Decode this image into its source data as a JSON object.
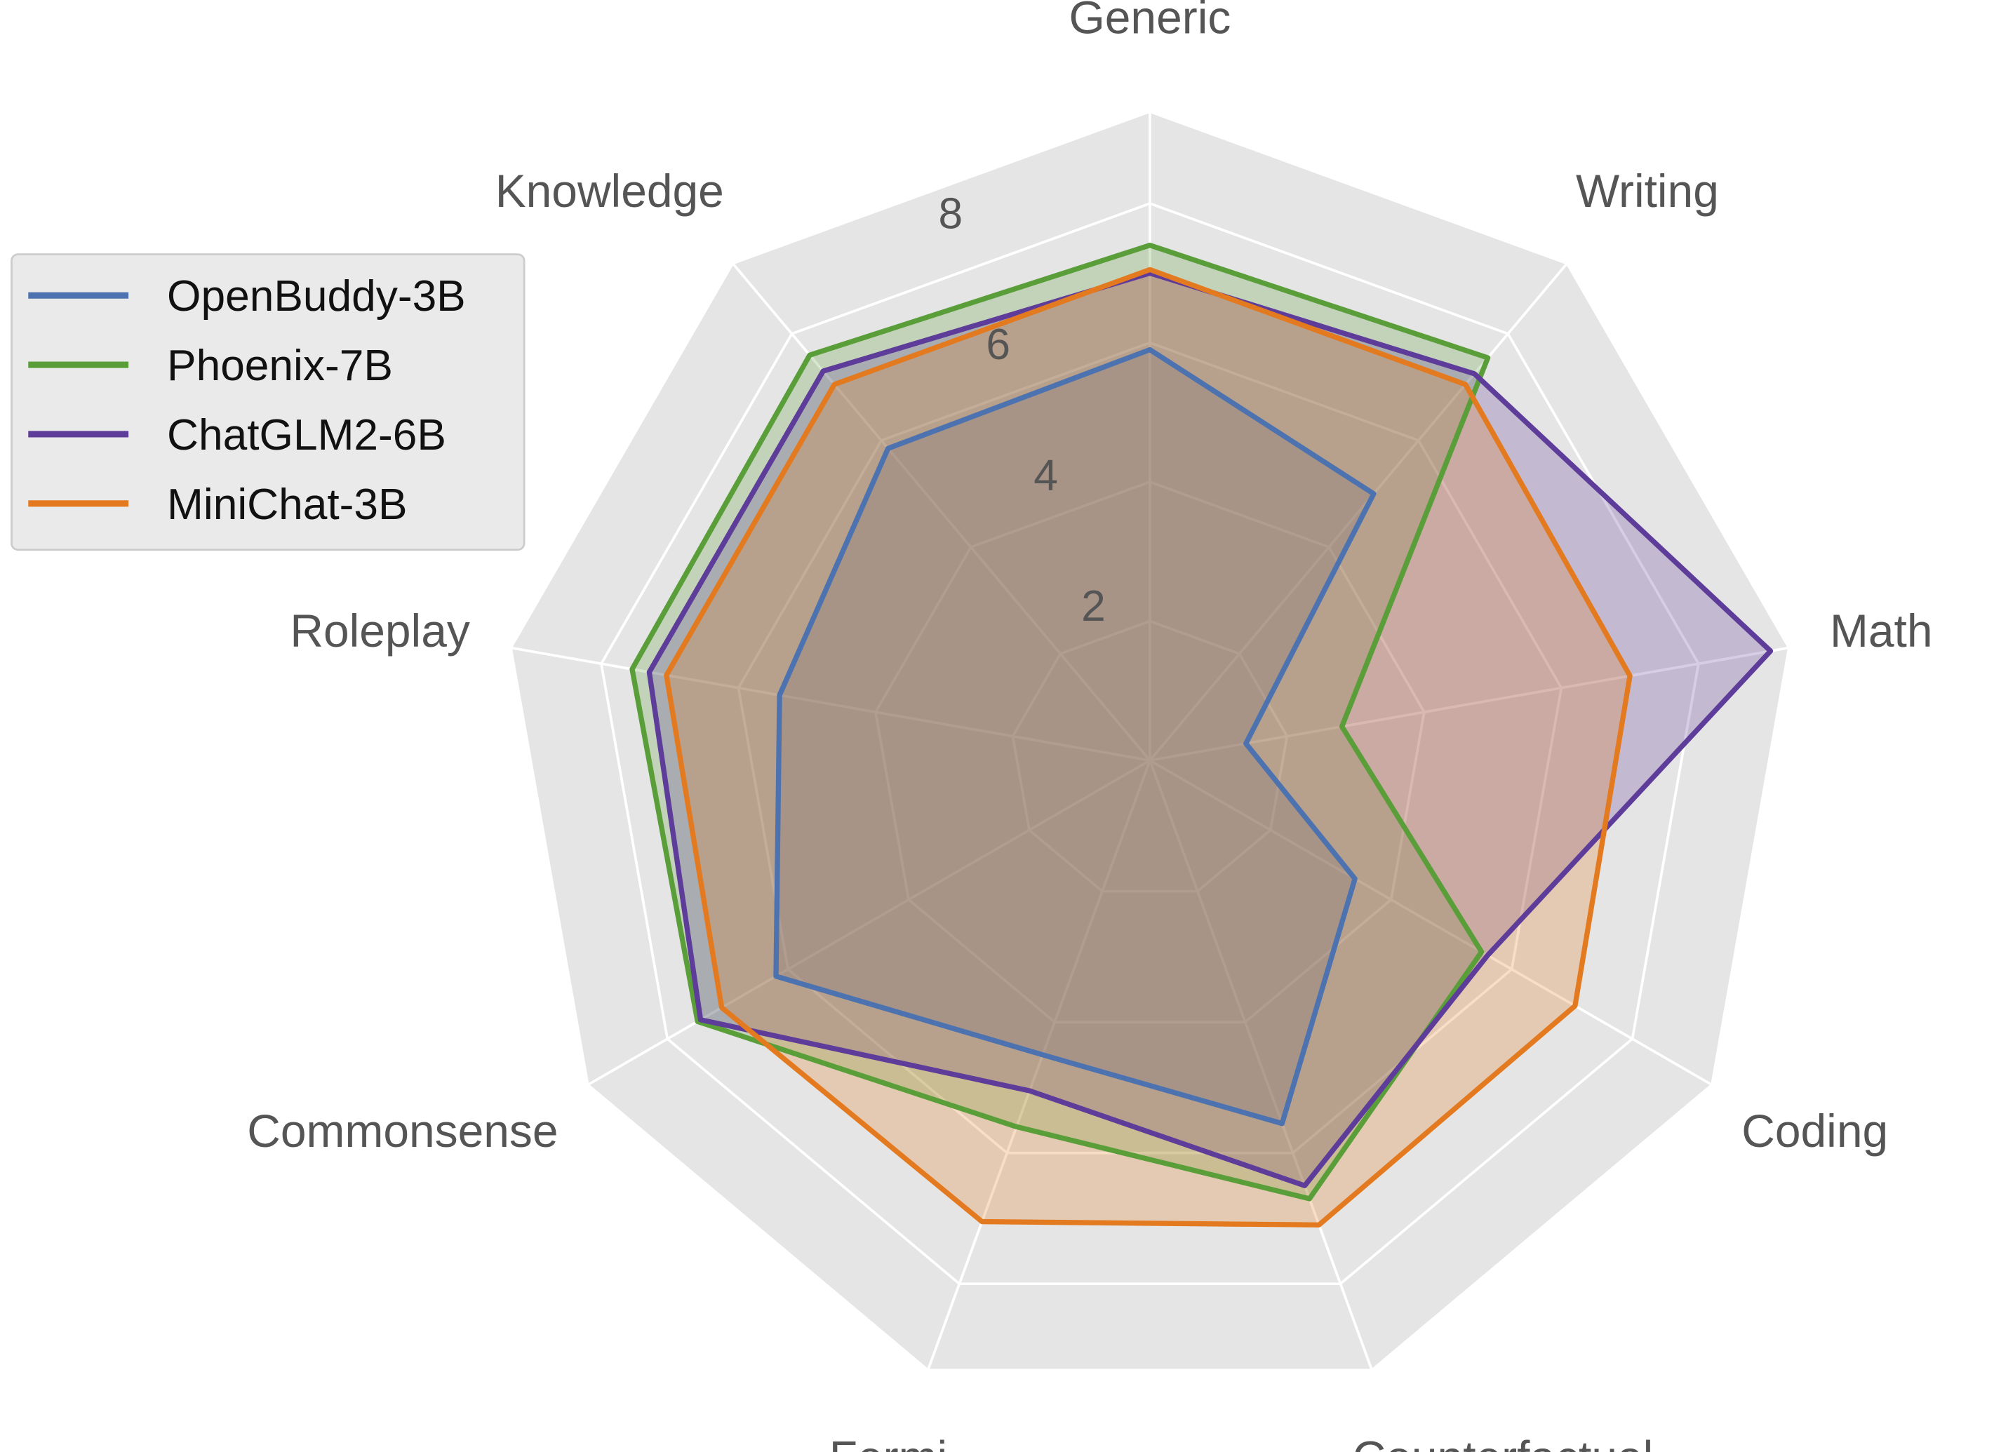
{
  "chart_data": {
    "type": "radar",
    "axes": [
      "Generic",
      "Writing",
      "Math",
      "Coding",
      "Counterfactual",
      "Fermi",
      "Commonsense",
      "Roleplay",
      "Knowledge"
    ],
    "radial_ticks": [
      2,
      4,
      6,
      8
    ],
    "tick_labels": [
      "2",
      "4",
      "6",
      "8"
    ],
    "rlim": [
      0,
      9.3
    ],
    "grid": true,
    "legend_position": "upper-left",
    "series": [
      {
        "name": "OpenBuddy-3B",
        "color": "#4C72B0",
        "values": [
          5.9,
          5.0,
          1.4,
          3.4,
          5.55,
          4.5,
          6.2,
          5.4,
          5.85
        ]
      },
      {
        "name": "Phoenix-7B",
        "color": "#5A9E3A",
        "values": [
          7.4,
          7.55,
          2.8,
          5.5,
          6.7,
          5.6,
          7.5,
          7.55,
          7.6
        ]
      },
      {
        "name": "ChatGLM2-6B",
        "color": "#5E3C99",
        "values": [
          7.0,
          7.25,
          9.05,
          5.6,
          6.5,
          5.05,
          7.45,
          7.3,
          7.3
        ]
      },
      {
        "name": "MiniChat-3B",
        "color": "#E47A1F",
        "values": [
          7.05,
          7.05,
          7.0,
          7.05,
          7.1,
          7.05,
          7.1,
          7.05,
          7.05
        ]
      }
    ]
  }
}
